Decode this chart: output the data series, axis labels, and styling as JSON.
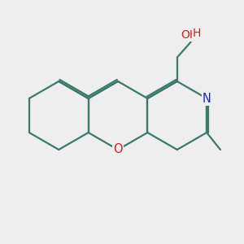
{
  "background_color": "#eeeeee",
  "bond_color": "#3a7a6a",
  "bond_width": 1.6,
  "atom_colors": {
    "N": "#2020cc",
    "O_ring": "#cc2020",
    "O_oh": "#cc2020"
  },
  "font_size_atom": 10.5,
  "figsize": [
    3.0,
    3.0
  ],
  "dpi": 100,
  "scale": 42,
  "ox": 145,
  "oy": 158
}
